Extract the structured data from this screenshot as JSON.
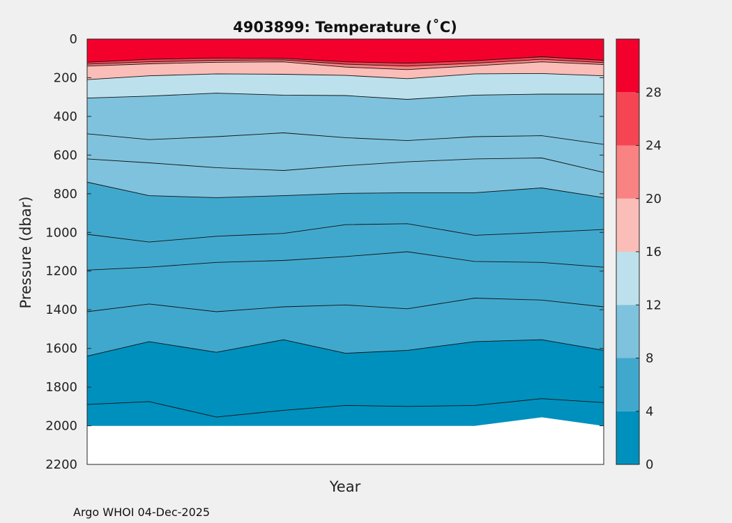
{
  "chart_data": {
    "type": "contour",
    "title": "4903899:  Temperature (˚C)",
    "xlabel": "Year",
    "ylabel": "Pressure (dbar)",
    "ylim": [
      0,
      2200
    ],
    "y_inverted": true,
    "y_ticks": [
      0,
      200,
      400,
      600,
      800,
      1000,
      1200,
      1400,
      1600,
      1800,
      2000,
      2200
    ],
    "x_samples": [
      0,
      0.12,
      0.25,
      0.38,
      0.5,
      0.62,
      0.75,
      0.88,
      1.0
    ],
    "isotherms": [
      {
        "temperature": 28,
        "depths": [
          120,
          105,
          98,
          100,
          118,
          125,
          112,
          92,
          110
        ]
      },
      {
        "temperature": 24,
        "depths": [
          130,
          118,
          110,
          108,
          130,
          140,
          125,
          105,
          122
        ]
      },
      {
        "temperature": 20,
        "depths": [
          140,
          128,
          120,
          118,
          145,
          158,
          138,
          118,
          132
        ]
      },
      {
        "temperature": 16,
        "depths": [
          210,
          190,
          180,
          182,
          188,
          205,
          180,
          178,
          190
        ]
      },
      {
        "temperature": 12,
        "depths": [
          305,
          295,
          280,
          290,
          292,
          312,
          290,
          285,
          285
        ]
      },
      {
        "temperature": 10,
        "depths": [
          490,
          520,
          505,
          485,
          510,
          525,
          505,
          500,
          545
        ]
      },
      {
        "temperature": 9,
        "depths": [
          620,
          640,
          665,
          680,
          655,
          635,
          620,
          615,
          690
        ]
      },
      {
        "temperature": 8,
        "depths": [
          740,
          810,
          820,
          810,
          798,
          795,
          795,
          770,
          820
        ]
      },
      {
        "temperature": 7,
        "depths": [
          1010,
          1050,
          1020,
          1005,
          960,
          955,
          1015,
          1000,
          985
        ]
      },
      {
        "temperature": 6,
        "depths": [
          1195,
          1180,
          1155,
          1145,
          1125,
          1100,
          1150,
          1155,
          1180
        ]
      },
      {
        "temperature": 5,
        "depths": [
          1410,
          1370,
          1410,
          1385,
          1375,
          1395,
          1340,
          1350,
          1385
        ]
      },
      {
        "temperature": 4,
        "depths": [
          1640,
          1565,
          1620,
          1555,
          1625,
          1610,
          1565,
          1555,
          1610
        ]
      },
      {
        "temperature": 3,
        "depths": [
          1890,
          1875,
          1955,
          1920,
          1895,
          1900,
          1895,
          1860,
          1880
        ]
      }
    ],
    "data_bottom_depths": [
      2000,
      2000,
      2000,
      2000,
      2000,
      2000,
      2000,
      1955,
      2000
    ],
    "colorbar": {
      "ticks": [
        0,
        4,
        8,
        12,
        16,
        20,
        24,
        28
      ],
      "bands": [
        {
          "from": 0,
          "to": 4,
          "color": "#0090bd"
        },
        {
          "from": 4,
          "to": 8,
          "color": "#41a8cd"
        },
        {
          "from": 8,
          "to": 12,
          "color": "#7fc2dd"
        },
        {
          "from": 12,
          "to": 16,
          "color": "#bde1ec"
        },
        {
          "from": 16,
          "to": 20,
          "color": "#fbbdb7"
        },
        {
          "from": 20,
          "to": 24,
          "color": "#f98282"
        },
        {
          "from": 24,
          "to": 28,
          "color": "#f54553"
        },
        {
          "from": 28,
          "to": 32,
          "color": "#f4002c"
        }
      ]
    },
    "depth_colors": {
      "above_28": "#f4002c",
      "28_24": "#f54553",
      "24_20": "#f98282",
      "20_16": "#fbbdb7",
      "16_12": "#bde1ec",
      "12_10": "#7fc2dd",
      "10_9": "#7fc2dd",
      "9_8": "#7fc2dd",
      "8_7": "#41a8cd",
      "7_6": "#41a8cd",
      "6_5": "#41a8cd",
      "5_4": "#41a8cd",
      "4_3": "#0090bd",
      "below_3": "#0090bd"
    }
  },
  "footer": "Argo WHOI 04-Dec-2025"
}
